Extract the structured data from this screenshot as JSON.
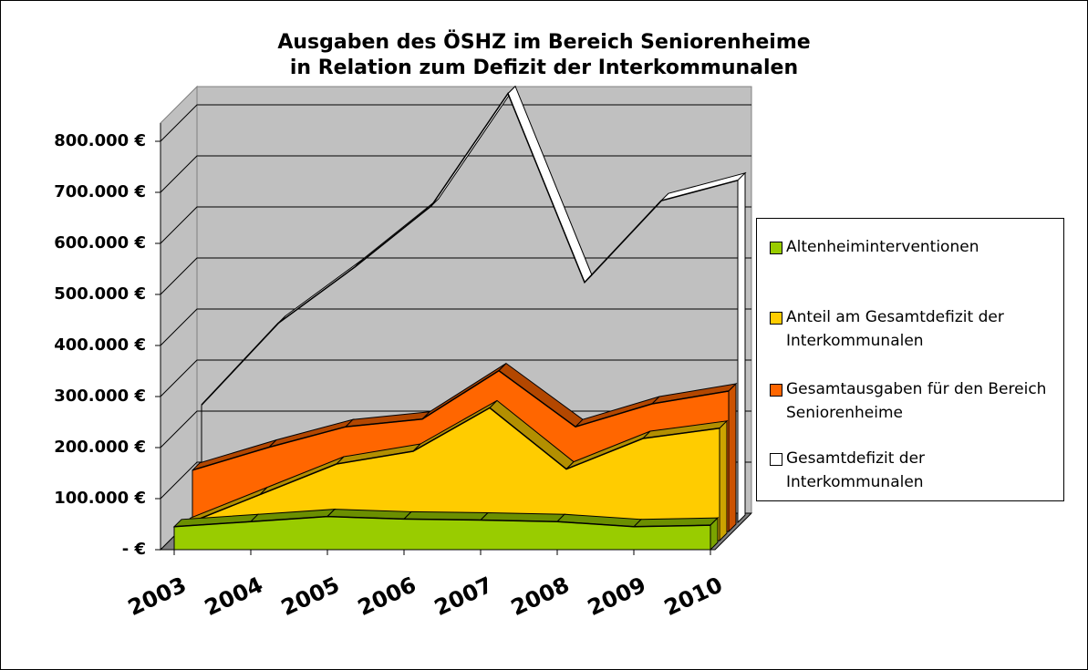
{
  "chart_data": {
    "type": "area3d",
    "title": [
      "Ausgaben des ÖSHZ im Bereich Seniorenheime",
      "in Relation zum Defizit der Interkommunalen"
    ],
    "categories": [
      "2003",
      "2004",
      "2005",
      "2006",
      "2007",
      "2008",
      "2009",
      "2010"
    ],
    "series": [
      {
        "name": "Altenheiminterventionen",
        "color": "#99cc00",
        "values": [
          45000,
          55000,
          65000,
          60000,
          58000,
          55000,
          45000,
          48000
        ]
      },
      {
        "name": "Anteil am Gesamtdefizit der Interkommunalen",
        "color": "#ffcc00",
        "values": [
          30000,
          90000,
          150000,
          175000,
          260000,
          140000,
          200000,
          220000
        ]
      },
      {
        "name": "Gesamtausgaben für den Bereich Seniorenheime",
        "color": "#ff6600",
        "values": [
          120000,
          165000,
          205000,
          220000,
          315000,
          205000,
          250000,
          275000
        ]
      },
      {
        "name": "Gesamtdefizit der Interkommunalen",
        "color": "#ffffff",
        "values": [
          230000,
          390000,
          500000,
          620000,
          840000,
          470000,
          630000,
          670000
        ]
      }
    ],
    "ylim": [
      0,
      800000
    ],
    "yticks": [
      {
        "value": 0,
        "label": "- €"
      },
      {
        "value": 100000,
        "label": "100.000 €"
      },
      {
        "value": 200000,
        "label": "200.000 €"
      },
      {
        "value": 300000,
        "label": "300.000 €"
      },
      {
        "value": 400000,
        "label": "400.000 €"
      },
      {
        "value": 500000,
        "label": "500.000 €"
      },
      {
        "value": 600000,
        "label": "600.000 €"
      },
      {
        "value": 700000,
        "label": "700.000 €"
      },
      {
        "value": 800000,
        "label": "800.000 €"
      }
    ],
    "grid": true
  }
}
